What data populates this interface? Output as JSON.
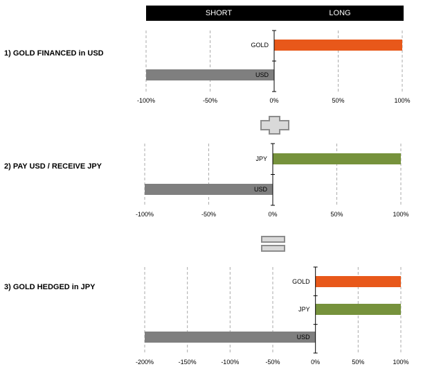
{
  "header": {
    "short_label": "SHORT",
    "long_label": "LONG"
  },
  "colors": {
    "gold": "#E8581A",
    "jpy": "#76923C",
    "usd": "#7F7F7F",
    "grid": "#AAAAAA",
    "axis": "#000000"
  },
  "icons": {
    "plus": "plus-icon",
    "equals": "equals-icon"
  },
  "chart_data": [
    {
      "type": "bar",
      "title": "1) GOLD FINANCED in USD",
      "categories": [
        "GOLD",
        "USD"
      ],
      "values": [
        100,
        -100
      ],
      "xlim": [
        -100,
        100
      ],
      "ticks": [
        -100,
        -50,
        0,
        50,
        100
      ],
      "tick_labels": [
        "-100%",
        "-50%",
        "0%",
        "50%",
        "100%"
      ],
      "grid": true
    },
    {
      "type": "bar",
      "title": "2) PAY USD / RECEIVE JPY",
      "categories": [
        "JPY",
        "USD"
      ],
      "values": [
        100,
        -100
      ],
      "xlim": [
        -100,
        100
      ],
      "ticks": [
        -100,
        -50,
        0,
        50,
        100
      ],
      "tick_labels": [
        "-100%",
        "-50%",
        "0%",
        "50%",
        "100%"
      ],
      "grid": true
    },
    {
      "type": "bar",
      "title": "3) GOLD HEDGED in JPY",
      "categories": [
        "GOLD",
        "JPY",
        "USD"
      ],
      "values": [
        100,
        100,
        -200
      ],
      "xlim": [
        -200,
        100
      ],
      "ticks": [
        -200,
        -150,
        -100,
        -50,
        0,
        50,
        100
      ],
      "tick_labels": [
        "-200%",
        "-150%",
        "-100%",
        "-50%",
        "0%",
        "50%",
        "100%"
      ],
      "grid": true
    }
  ]
}
